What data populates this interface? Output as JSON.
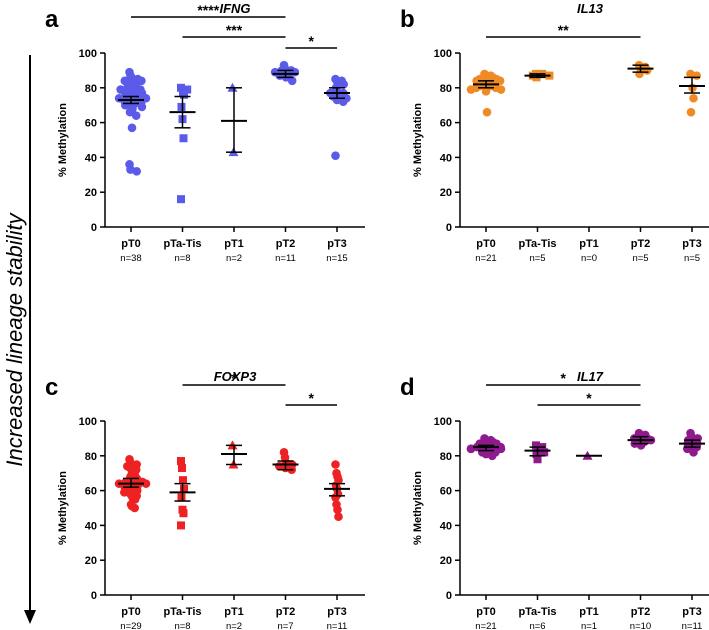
{
  "side_label": "Increased lineage stability",
  "chart_data": [
    {
      "type": "scatter",
      "panel": "a",
      "title": "IFNG",
      "ylabel": "% Methylation",
      "ylim": [
        0,
        100
      ],
      "yticks": [
        0,
        20,
        40,
        60,
        80,
        100
      ],
      "categories": [
        "pT0",
        "pTa-Tis",
        "pT1",
        "pT2",
        "pT3"
      ],
      "counts": [
        "n=38",
        "n=8",
        "n=2",
        "n=11",
        "n=15"
      ],
      "color": "#5b5bea",
      "markers": [
        "circle",
        "square",
        "triangle",
        "circle",
        "circle"
      ],
      "means": [
        73,
        66,
        61,
        88,
        77
      ],
      "errors": [
        [
          71,
          75
        ],
        [
          57,
          75
        ],
        [
          43,
          80
        ],
        [
          86,
          90
        ],
        [
          74,
          80
        ]
      ],
      "points": [
        [
          89,
          87,
          86,
          85,
          84,
          84,
          83,
          82,
          81,
          80,
          80,
          79,
          79,
          78,
          78,
          77,
          77,
          76,
          76,
          75,
          75,
          74,
          74,
          73,
          73,
          72,
          72,
          71,
          71,
          70,
          69,
          68,
          66,
          64,
          57,
          36,
          33,
          32
        ],
        [
          80,
          79,
          77,
          76,
          69,
          62,
          51,
          16
        ],
        [
          80,
          43
        ],
        [
          93,
          91,
          90,
          90,
          89,
          89,
          88,
          88,
          87,
          86,
          84
        ],
        [
          85,
          84,
          83,
          82,
          80,
          78,
          77,
          77,
          76,
          76,
          75,
          74,
          73,
          72,
          41
        ]
      ],
      "significance": [
        {
          "from": 0,
          "to": 3,
          "label": "****"
        },
        {
          "from": 1,
          "to": 3,
          "label": "***"
        },
        {
          "from": 3,
          "to": 4,
          "label": "*"
        }
      ]
    },
    {
      "type": "scatter",
      "panel": "b",
      "title": "IL13",
      "ylabel": "% Methylation",
      "ylim": [
        0,
        100
      ],
      "yticks": [
        0,
        20,
        40,
        60,
        80,
        100
      ],
      "categories": [
        "pT0",
        "pTa-Tis",
        "pT1",
        "pT2",
        "pT3"
      ],
      "counts": [
        "n=21",
        "n=5",
        "n=0",
        "n=5",
        "n=5"
      ],
      "color": "#f08a24",
      "markers": [
        "circle",
        "square",
        "triangle",
        "circle",
        "circle"
      ],
      "means": [
        82,
        87,
        null,
        91,
        81
      ],
      "errors": [
        [
          80,
          84
        ],
        [
          86,
          88
        ],
        null,
        [
          89,
          93
        ],
        [
          77,
          86
        ]
      ],
      "points": [
        [
          88,
          87,
          86,
          86,
          85,
          85,
          84,
          84,
          83,
          83,
          82,
          82,
          81,
          81,
          81,
          80,
          80,
          79,
          79,
          78,
          66
        ],
        [
          88,
          88,
          87,
          87,
          86
        ],
        [],
        [
          93,
          92,
          91,
          90,
          88
        ],
        [
          88,
          87,
          80,
          74,
          66
        ]
      ],
      "significance": [
        {
          "from": 0,
          "to": 3,
          "label": "**"
        }
      ]
    },
    {
      "type": "scatter",
      "panel": "c",
      "title": "FOXP3",
      "ylabel": "% Methylation",
      "ylim": [
        0,
        100
      ],
      "yticks": [
        0,
        20,
        40,
        60,
        80,
        100
      ],
      "categories": [
        "pT0",
        "pTa-Tis",
        "pT1",
        "pT2",
        "pT3"
      ],
      "counts": [
        "n=29",
        "n=8",
        "n=2",
        "n=7",
        "n=11"
      ],
      "color": "#ee2222",
      "markers": [
        "circle",
        "square",
        "triangle",
        "circle",
        "circle"
      ],
      "means": [
        64,
        59,
        81,
        75,
        61
      ],
      "errors": [
        [
          62,
          67
        ],
        [
          54,
          64
        ],
        [
          75,
          86
        ],
        [
          72,
          77
        ],
        [
          57,
          64
        ]
      ],
      "points": [
        [
          78,
          76,
          75,
          74,
          73,
          72,
          70,
          69,
          68,
          67,
          66,
          66,
          65,
          65,
          64,
          64,
          63,
          63,
          62,
          61,
          60,
          59,
          58,
          57,
          56,
          55,
          52,
          51,
          50
        ],
        [
          77,
          73,
          66,
          61,
          56,
          49,
          47,
          40
        ],
        [
          86,
          75
        ],
        [
          82,
          79,
          76,
          75,
          74,
          73,
          72
        ],
        [
          75,
          70,
          68,
          66,
          63,
          61,
          58,
          56,
          52,
          49,
          45
        ]
      ],
      "significance": [
        {
          "from": 1,
          "to": 3,
          "label": "*"
        },
        {
          "from": 3,
          "to": 4,
          "label": "*"
        }
      ]
    },
    {
      "type": "scatter",
      "panel": "d",
      "title": "IL17",
      "ylabel": "% Methylation",
      "ylim": [
        0,
        100
      ],
      "yticks": [
        0,
        20,
        40,
        60,
        80,
        100
      ],
      "categories": [
        "pT0",
        "pTa-Tis",
        "pT1",
        "pT2",
        "pT3"
      ],
      "counts": [
        "n=21",
        "n=6",
        "n=1",
        "n=10",
        "n=11"
      ],
      "color": "#8e1a8e",
      "markers": [
        "circle",
        "square",
        "triangle",
        "circle",
        "circle"
      ],
      "means": [
        85,
        83,
        80,
        89,
        87
      ],
      "errors": [
        [
          83,
          86
        ],
        [
          80,
          85
        ],
        null,
        [
          87,
          91
        ],
        [
          85,
          89
        ]
      ],
      "points": [
        [
          90,
          89,
          88,
          88,
          87,
          87,
          86,
          86,
          86,
          85,
          85,
          85,
          84,
          84,
          84,
          83,
          83,
          82,
          82,
          81,
          80
        ],
        [
          86,
          85,
          83,
          82,
          81,
          78
        ],
        [
          80
        ],
        [
          93,
          92,
          91,
          90,
          90,
          89,
          88,
          88,
          87,
          86
        ],
        [
          93,
          91,
          90,
          89,
          88,
          87,
          87,
          86,
          85,
          84,
          82
        ]
      ],
      "significance": [
        {
          "from": 0,
          "to": 3,
          "label": "*"
        },
        {
          "from": 1,
          "to": 3,
          "label": "*"
        }
      ]
    }
  ]
}
